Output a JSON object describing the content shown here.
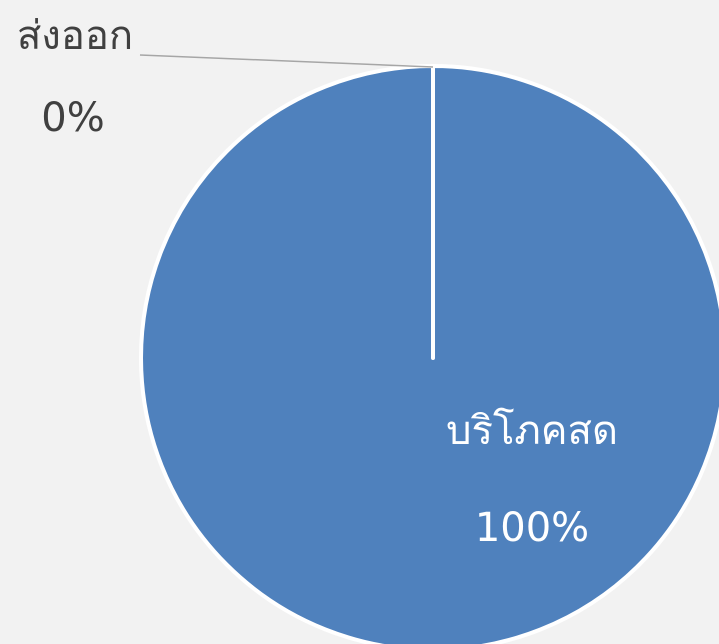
{
  "chart_data": {
    "type": "pie",
    "categories": [
      "ส่งออก",
      "บริโภคสด"
    ],
    "values": [
      0,
      100
    ],
    "value_labels": [
      "0%",
      "100%"
    ],
    "colors": [
      "#4f81bd",
      "#4f81bd"
    ]
  }
}
